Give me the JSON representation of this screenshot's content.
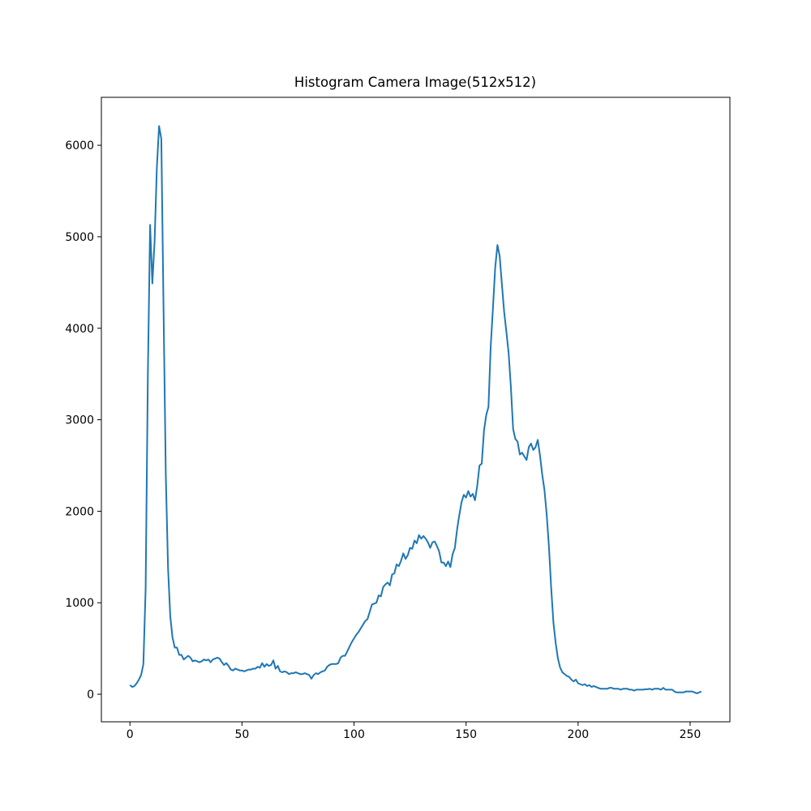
{
  "chart_data": {
    "type": "line",
    "title": "Histogram Camera Image(512x512)",
    "color": "#1f77b4",
    "x": [
      0,
      1,
      2,
      3,
      4,
      5,
      6,
      7,
      8,
      9,
      10,
      11,
      12,
      13,
      14,
      15,
      16,
      17,
      18,
      19,
      20,
      21,
      22,
      23,
      24,
      25,
      26,
      27,
      28,
      29,
      30,
      31,
      32,
      33,
      34,
      35,
      36,
      37,
      38,
      39,
      40,
      41,
      42,
      43,
      44,
      45,
      46,
      47,
      48,
      49,
      50,
      51,
      52,
      53,
      54,
      55,
      56,
      57,
      58,
      59,
      60,
      61,
      62,
      63,
      64,
      65,
      66,
      67,
      68,
      69,
      70,
      71,
      72,
      73,
      74,
      75,
      76,
      77,
      78,
      79,
      80,
      81,
      82,
      83,
      84,
      85,
      86,
      87,
      88,
      89,
      90,
      91,
      92,
      93,
      94,
      95,
      96,
      97,
      98,
      99,
      100,
      101,
      102,
      103,
      104,
      105,
      106,
      107,
      108,
      109,
      110,
      111,
      112,
      113,
      114,
      115,
      116,
      117,
      118,
      119,
      120,
      121,
      122,
      123,
      124,
      125,
      126,
      127,
      128,
      129,
      130,
      131,
      132,
      133,
      134,
      135,
      136,
      137,
      138,
      139,
      140,
      141,
      142,
      143,
      144,
      145,
      146,
      147,
      148,
      149,
      150,
      151,
      152,
      153,
      154,
      155,
      156,
      157,
      158,
      159,
      160,
      161,
      162,
      163,
      164,
      165,
      166,
      167,
      168,
      169,
      170,
      171,
      172,
      173,
      174,
      175,
      176,
      177,
      178,
      179,
      180,
      181,
      182,
      183,
      184,
      185,
      186,
      187,
      188,
      189,
      190,
      191,
      192,
      193,
      194,
      195,
      196,
      197,
      198,
      199,
      200,
      201,
      202,
      203,
      204,
      205,
      206,
      207,
      208,
      209,
      210,
      211,
      212,
      213,
      214,
      215,
      216,
      217,
      218,
      219,
      220,
      221,
      222,
      223,
      224,
      225,
      226,
      227,
      228,
      229,
      230,
      231,
      232,
      233,
      234,
      235,
      236,
      237,
      238,
      239,
      240,
      241,
      242,
      243,
      244,
      245,
      246,
      247,
      248,
      249,
      250,
      251,
      252,
      253,
      254,
      255
    ],
    "values": [
      100,
      80,
      90,
      120,
      160,
      210,
      330,
      1150,
      3500,
      5130,
      4490,
      4950,
      5750,
      6210,
      6070,
      4200,
      2400,
      1380,
      850,
      620,
      510,
      510,
      430,
      430,
      380,
      400,
      420,
      400,
      360,
      370,
      360,
      350,
      360,
      380,
      370,
      380,
      350,
      380,
      390,
      400,
      390,
      350,
      320,
      340,
      310,
      270,
      260,
      280,
      270,
      260,
      260,
      250,
      260,
      270,
      270,
      280,
      280,
      300,
      290,
      340,
      300,
      330,
      310,
      320,
      370,
      280,
      310,
      250,
      240,
      250,
      240,
      220,
      230,
      230,
      240,
      230,
      220,
      220,
      230,
      220,
      210,
      170,
      210,
      230,
      220,
      240,
      250,
      260,
      300,
      320,
      330,
      330,
      330,
      340,
      400,
      420,
      420,
      470,
      520,
      570,
      610,
      650,
      680,
      720,
      760,
      800,
      820,
      900,
      980,
      990,
      1000,
      1080,
      1070,
      1170,
      1200,
      1220,
      1190,
      1310,
      1320,
      1420,
      1400,
      1460,
      1540,
      1480,
      1520,
      1600,
      1590,
      1680,
      1650,
      1740,
      1700,
      1730,
      1700,
      1660,
      1600,
      1660,
      1670,
      1620,
      1560,
      1440,
      1440,
      1400,
      1450,
      1390,
      1530,
      1600,
      1800,
      1960,
      2100,
      2180,
      2150,
      2220,
      2160,
      2190,
      2120,
      2280,
      2500,
      2520,
      2880,
      3050,
      3140,
      3800,
      4220,
      4660,
      4910,
      4790,
      4480,
      4180,
      3960,
      3730,
      3360,
      2900,
      2790,
      2760,
      2620,
      2640,
      2600,
      2560,
      2700,
      2740,
      2670,
      2700,
      2780,
      2610,
      2400,
      2230,
      1960,
      1610,
      1160,
      780,
      560,
      390,
      290,
      240,
      220,
      200,
      190,
      160,
      140,
      160,
      120,
      110,
      100,
      110,
      90,
      100,
      80,
      90,
      80,
      70,
      60,
      60,
      60,
      60,
      70,
      70,
      60,
      60,
      60,
      50,
      60,
      60,
      60,
      50,
      50,
      40,
      50,
      50,
      50,
      50,
      55,
      55,
      60,
      50,
      60,
      60,
      60,
      50,
      70,
      50,
      50,
      50,
      50,
      30,
      20,
      20,
      20,
      20,
      30,
      30,
      30,
      30,
      20,
      10,
      20,
      30
    ],
    "xlim": [
      -12.75,
      267.75
    ],
    "xticks": [
      0,
      50,
      100,
      150,
      200,
      250
    ],
    "ylim": [
      -301,
      6524
    ],
    "yticks": [
      0,
      1000,
      2000,
      3000,
      4000,
      5000,
      6000
    ]
  }
}
